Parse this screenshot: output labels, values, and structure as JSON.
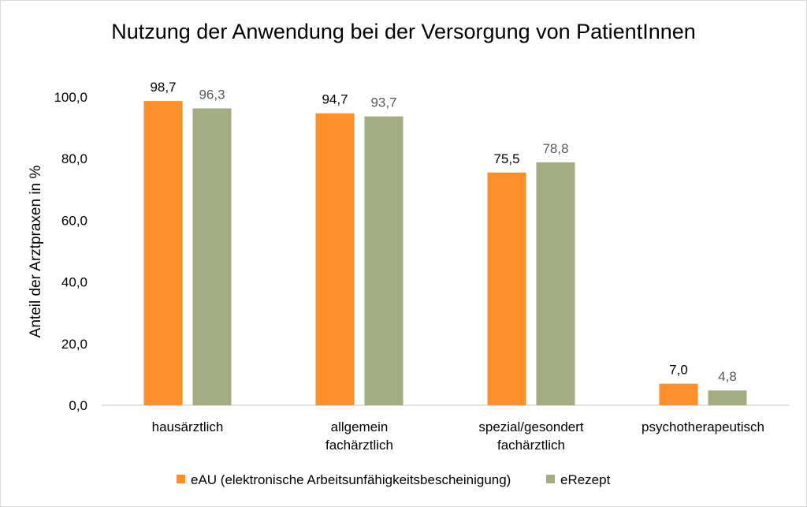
{
  "chart_data": {
    "type": "bar",
    "title": "Nutzung der Anwendung bei der Versorgung von PatientInnen",
    "xlabel": "",
    "ylabel": "Anteil der Arztpraxen in %",
    "ylim": [
      0,
      100
    ],
    "yticks": [
      "0,0",
      "20,0",
      "40,0",
      "60,0",
      "80,0",
      "100,0"
    ],
    "ytick_values": [
      0,
      20,
      40,
      60,
      80,
      100
    ],
    "grid": false,
    "legend_position": "bottom",
    "categories": [
      [
        "hausärztlich"
      ],
      [
        "allgemein",
        "fachärztlich"
      ],
      [
        "spezial/gesondert",
        "fachärztlich"
      ],
      [
        "psychotherapeutisch"
      ]
    ],
    "series": [
      {
        "name": "eAU (elektronische Arbeitsunfähigkeitsbescheinigung)",
        "values": [
          98.7,
          94.7,
          75.5,
          7.0
        ],
        "labels": [
          "98,7",
          "94,7",
          "75,5",
          "7,0"
        ],
        "color": "#FF8F2B",
        "label_color": "#000000"
      },
      {
        "name": "eRezept",
        "values": [
          96.3,
          93.7,
          78.8,
          4.8
        ],
        "labels": [
          "96,3",
          "93,7",
          "78,8",
          "4,8"
        ],
        "color": "#A4AC82",
        "label_color": "#595959"
      }
    ]
  }
}
